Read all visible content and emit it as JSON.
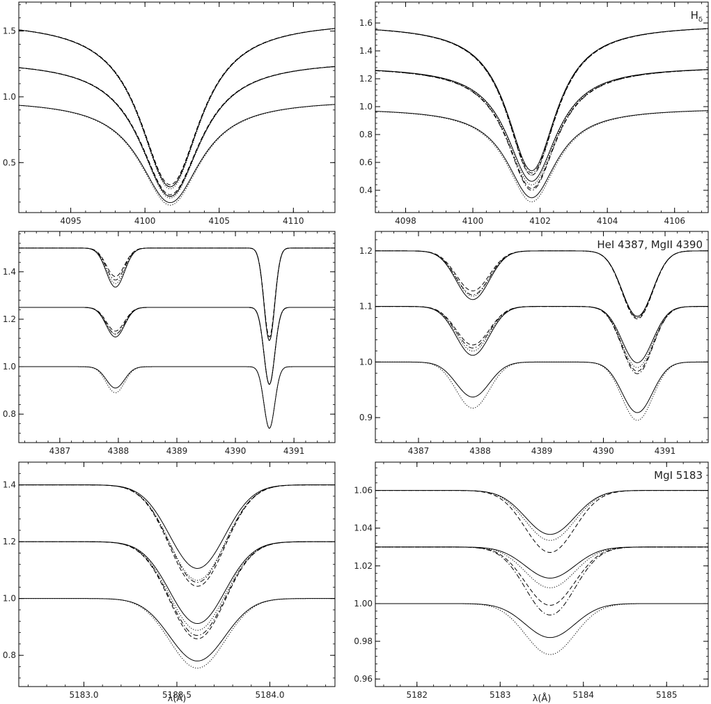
{
  "chart_data": [
    {
      "type": "line",
      "title": "",
      "xlabel": "",
      "ylabel": "",
      "xlim": [
        4091.5,
        4112.8
      ],
      "ylim": [
        0.12,
        1.72
      ],
      "x_ticks": [
        4095,
        4100,
        4105,
        4110
      ],
      "x_tick_labels": [
        "4095",
        "4100",
        "4105",
        "4110"
      ],
      "y_ticks": [
        0.5,
        1.0,
        1.5
      ],
      "y_tick_labels": [
        "0.5",
        "1.0",
        "1.5"
      ],
      "line_centers": [
        4101.7
      ],
      "line_widths": [
        2.5
      ],
      "shape": "lorentz",
      "groups": [
        {
          "continuum": 1.58,
          "curves": [
            {
              "style": "solid",
              "depths": [
                0.8
              ]
            },
            {
              "style": "dotted",
              "depths": [
                0.81
              ]
            },
            {
              "style": "dashed",
              "depths": [
                0.79
              ]
            },
            {
              "style": "dashdot",
              "depths": [
                0.8
              ]
            }
          ]
        },
        {
          "continuum": 1.28,
          "curves": [
            {
              "style": "solid",
              "depths": [
                0.81
              ]
            },
            {
              "style": "dotted",
              "depths": [
                0.82
              ]
            },
            {
              "style": "dashed",
              "depths": [
                0.8
              ]
            },
            {
              "style": "dashdot",
              "depths": [
                0.81
              ]
            }
          ]
        },
        {
          "continuum": 0.98,
          "curves": [
            {
              "style": "solid",
              "depths": [
                0.8
              ]
            },
            {
              "style": "dotted",
              "depths": [
                0.82
              ]
            }
          ]
        }
      ]
    },
    {
      "type": "line",
      "title": "H",
      "title_sub": "δ",
      "xlabel": "",
      "ylabel": "",
      "xlim": [
        4097.1,
        4107.0
      ],
      "ylim": [
        0.24,
        1.75
      ],
      "x_ticks": [
        4098,
        4100,
        4102,
        4104,
        4106
      ],
      "x_tick_labels": [
        "4098",
        "4100",
        "4102",
        "4104",
        "4106"
      ],
      "y_ticks": [
        0.4,
        0.6,
        0.8,
        1.0,
        1.2,
        1.4,
        1.6
      ],
      "y_tick_labels": [
        "0.4",
        "0.6",
        "0.8",
        "1.0",
        "1.2",
        "1.4",
        "1.6"
      ],
      "line_centers": [
        4101.75
      ],
      "line_widths": [
        0.9
      ],
      "shape": "lorentz",
      "groups": [
        {
          "continuum": 1.59,
          "curves": [
            {
              "style": "solid",
              "depths": [
                0.66
              ]
            },
            {
              "style": "dotted",
              "depths": [
                0.68
              ]
            },
            {
              "style": "dashed",
              "depths": [
                0.68
              ]
            },
            {
              "style": "dashdot",
              "depths": [
                0.67
              ]
            }
          ]
        },
        {
          "continuum": 1.29,
          "curves": [
            {
              "style": "solid",
              "depths": [
                0.64
              ]
            },
            {
              "style": "dotted",
              "depths": [
                0.66
              ]
            },
            {
              "style": "dashed",
              "depths": [
                0.68
              ]
            },
            {
              "style": "dashdot",
              "depths": [
                0.69
              ]
            }
          ]
        },
        {
          "continuum": 0.99,
          "curves": [
            {
              "style": "solid",
              "depths": [
                0.65
              ]
            },
            {
              "style": "dotted",
              "depths": [
                0.68
              ]
            }
          ]
        }
      ]
    },
    {
      "type": "line",
      "title": "",
      "xlabel": "",
      "ylabel": "",
      "xlim": [
        4386.3,
        4391.7
      ],
      "ylim": [
        0.68,
        1.57
      ],
      "x_ticks": [
        4387,
        4388,
        4389,
        4390,
        4391
      ],
      "x_tick_labels": [
        "4387",
        "4388",
        "4389",
        "4390",
        "4391"
      ],
      "y_ticks": [
        0.8,
        1.0,
        1.2,
        1.4
      ],
      "y_tick_labels": [
        "0.8",
        "1.0",
        "1.2",
        "1.4"
      ],
      "line_centers": [
        4387.95,
        4390.58
      ],
      "line_widths": [
        0.22,
        0.13
      ],
      "shape": "gauss",
      "groups": [
        {
          "continuum": 1.5,
          "curves": [
            {
              "style": "solid",
              "depths": [
                0.11,
                0.26
              ]
            },
            {
              "style": "dotted",
              "depths": [
                0.1,
                0.26
              ]
            },
            {
              "style": "dashed",
              "depths": [
                0.08,
                0.25
              ]
            },
            {
              "style": "dashdot",
              "depths": [
                0.09,
                0.26
              ]
            }
          ]
        },
        {
          "continuum": 1.25,
          "curves": [
            {
              "style": "solid",
              "depths": [
                0.1,
                0.26
              ]
            },
            {
              "style": "dotted",
              "depths": [
                0.09,
                0.26
              ]
            },
            {
              "style": "dashed",
              "depths": [
                0.08,
                0.26
              ]
            },
            {
              "style": "dashdot",
              "depths": [
                0.09,
                0.26
              ]
            }
          ]
        },
        {
          "continuum": 1.0,
          "curves": [
            {
              "style": "solid",
              "depths": [
                0.09,
                0.26
              ]
            },
            {
              "style": "dotted",
              "depths": [
                0.11,
                0.26
              ]
            }
          ]
        }
      ]
    },
    {
      "type": "line",
      "title": "HeI 4387, MgII 4390",
      "xlabel": "",
      "ylabel": "",
      "xlim": [
        4386.3,
        4391.7
      ],
      "ylim": [
        0.855,
        1.235
      ],
      "x_ticks": [
        4387,
        4388,
        4389,
        4390,
        4391
      ],
      "x_tick_labels": [
        "4387",
        "4388",
        "4389",
        "4390",
        "4391"
      ],
      "y_ticks": [
        0.9,
        1.0,
        1.1,
        1.2
      ],
      "y_tick_labels": [
        "0.9",
        "1.0",
        "1.1",
        "1.2"
      ],
      "line_centers": [
        4387.88,
        4390.55
      ],
      "line_widths": [
        0.38,
        0.35
      ],
      "shape": "gauss",
      "groups": [
        {
          "continuum": 1.2,
          "curves": [
            {
              "style": "solid",
              "depths": [
                0.073,
                0.098
              ]
            },
            {
              "style": "dotted",
              "depths": [
                0.068,
                0.1
              ]
            },
            {
              "style": "dashed",
              "depths": [
                0.06,
                0.102
              ]
            },
            {
              "style": "dashdot",
              "depths": [
                0.066,
                0.1
              ]
            }
          ]
        },
        {
          "continuum": 1.1,
          "curves": [
            {
              "style": "solid",
              "depths": [
                0.08,
                0.092
              ]
            },
            {
              "style": "dotted",
              "depths": [
                0.073,
                0.1
              ]
            },
            {
              "style": "dashed",
              "depths": [
                0.063,
                0.106
              ]
            },
            {
              "style": "dashdot",
              "depths": [
                0.068,
                0.11
              ]
            }
          ]
        },
        {
          "continuum": 1.0,
          "curves": [
            {
              "style": "solid",
              "depths": [
                0.063,
                0.091
              ]
            },
            {
              "style": "dotted",
              "depths": [
                0.083,
                0.105
              ]
            }
          ]
        }
      ]
    },
    {
      "type": "line",
      "title": "",
      "xlabel": "λ(Å)",
      "ylabel": "",
      "xlim": [
        5182.65,
        5184.35
      ],
      "ylim": [
        0.69,
        1.48
      ],
      "x_ticks": [
        5183.0,
        5183.5,
        5184.0
      ],
      "x_tick_labels": [
        "5183.0",
        "5183.5",
        "5184.0"
      ],
      "y_ticks": [
        0.8,
        1.0,
        1.2,
        1.4
      ],
      "y_tick_labels": [
        "0.8",
        "1.0",
        "1.2",
        "1.4"
      ],
      "line_centers": [
        5183.61
      ],
      "line_widths": [
        0.21
      ],
      "shape": "gauss",
      "groups": [
        {
          "continuum": 1.4,
          "curves": [
            {
              "style": "solid",
              "depths": [
                0.21
              ]
            },
            {
              "style": "dotted",
              "depths": [
                0.24
              ]
            },
            {
              "style": "dashed",
              "depths": [
                0.255
              ]
            },
            {
              "style": "dashdot",
              "depths": [
                0.245
              ]
            }
          ]
        },
        {
          "continuum": 1.2,
          "curves": [
            {
              "style": "solid",
              "depths": [
                0.24
              ]
            },
            {
              "style": "dotted",
              "depths": [
                0.26
              ]
            },
            {
              "style": "dashed",
              "depths": [
                0.285
              ]
            },
            {
              "style": "dashdot",
              "depths": [
                0.275
              ]
            }
          ]
        },
        {
          "continuum": 1.0,
          "curves": [
            {
              "style": "solid",
              "depths": [
                0.22
              ]
            },
            {
              "style": "dotted",
              "depths": [
                0.245
              ]
            }
          ]
        }
      ]
    },
    {
      "type": "line",
      "title": "MgI 5183",
      "xlabel": "λ(Å)",
      "ylabel": "",
      "xlim": [
        5181.5,
        5185.5
      ],
      "ylim": [
        0.956,
        1.075
      ],
      "x_ticks": [
        5182,
        5183,
        5184,
        5185
      ],
      "x_tick_labels": [
        "5182",
        "5183",
        "5184",
        "5185"
      ],
      "y_ticks": [
        0.96,
        0.98,
        1.0,
        1.02,
        1.04,
        1.06
      ],
      "y_tick_labels": [
        "0.96",
        "0.98",
        "1.00",
        "1.02",
        "1.04",
        "1.06"
      ],
      "line_centers": [
        5183.6
      ],
      "line_widths": [
        0.42
      ],
      "shape": "gauss",
      "groups": [
        {
          "continuum": 1.06,
          "curves": [
            {
              "style": "solid",
              "depths": [
                0.022
              ]
            },
            {
              "style": "dotted",
              "depths": [
                0.025
              ]
            },
            {
              "style": "dashed",
              "depths": [
                0.031
              ]
            }
          ]
        },
        {
          "continuum": 1.03,
          "curves": [
            {
              "style": "solid",
              "depths": [
                0.016
              ]
            },
            {
              "style": "dotted",
              "depths": [
                0.021
              ]
            },
            {
              "style": "dashed",
              "depths": [
                0.03
              ]
            },
            {
              "style": "dashdot",
              "depths": [
                0.035
              ]
            }
          ]
        },
        {
          "continuum": 1.0,
          "curves": [
            {
              "style": "solid",
              "depths": [
                0.018
              ]
            },
            {
              "style": "dotted",
              "depths": [
                0.027
              ]
            }
          ]
        }
      ]
    }
  ]
}
